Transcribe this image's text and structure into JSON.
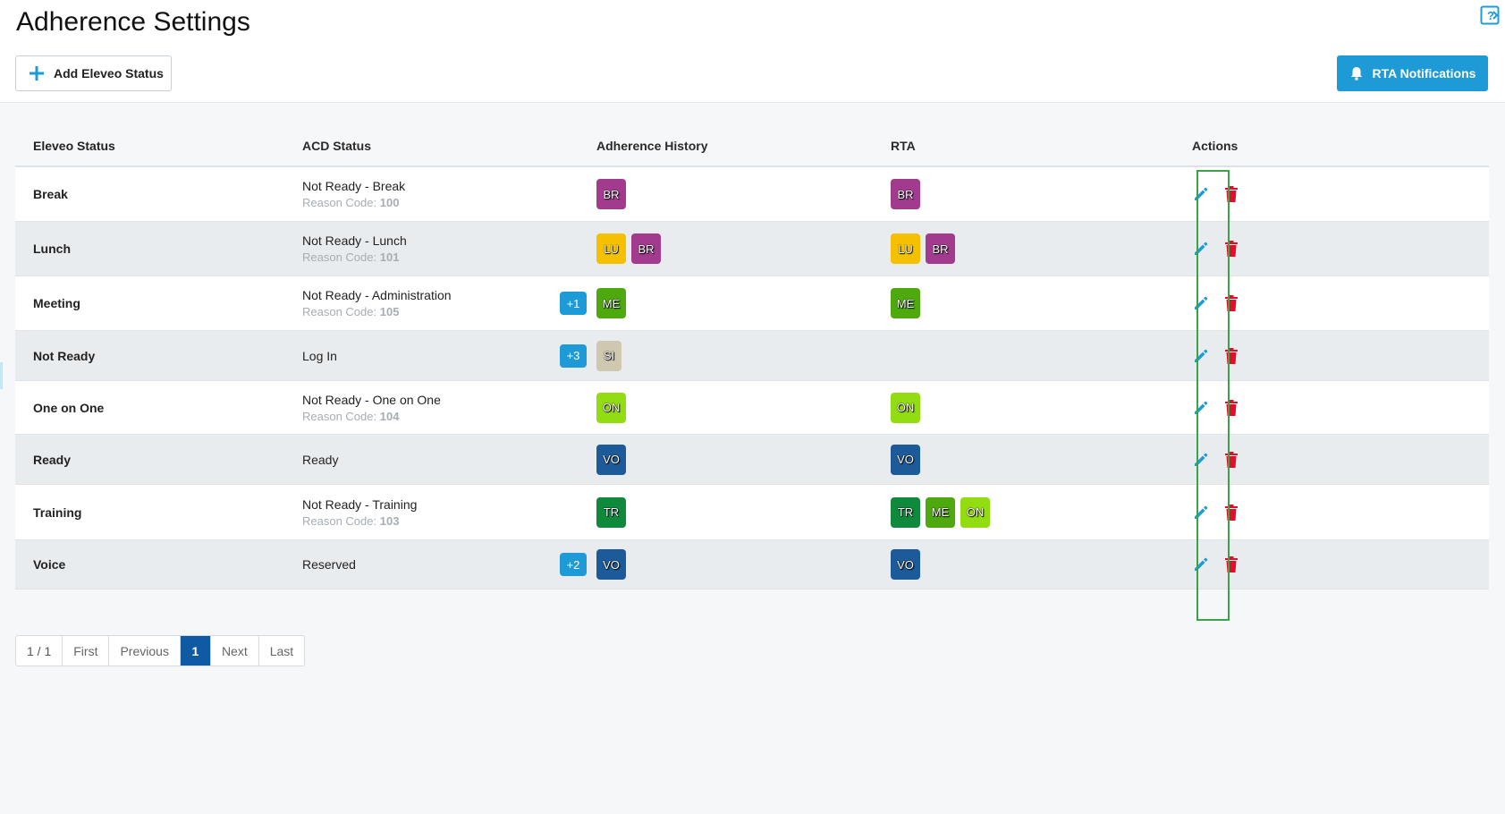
{
  "header": {
    "title": "Adherence Settings",
    "add_button_label": "Add Eleveo Status",
    "rta_button_label": "RTA Notifications"
  },
  "table": {
    "columns": [
      "Eleveo Status",
      "ACD Status",
      "Adherence History",
      "RTA",
      "Actions"
    ],
    "rows": [
      {
        "status": "Break",
        "acd": "Not Ready - Break",
        "reason_label": "Reason Code: ",
        "reason_code": "100",
        "extra": "",
        "history": [
          "BR"
        ],
        "rta": [
          "BR"
        ]
      },
      {
        "status": "Lunch",
        "acd": "Not Ready - Lunch",
        "reason_label": "Reason Code: ",
        "reason_code": "101",
        "extra": "",
        "history": [
          "LU",
          "BR"
        ],
        "rta": [
          "LU",
          "BR"
        ]
      },
      {
        "status": "Meeting",
        "acd": "Not Ready - Administration",
        "reason_label": "Reason Code: ",
        "reason_code": "105",
        "extra": "+1",
        "history": [
          "ME"
        ],
        "rta": [
          "ME"
        ]
      },
      {
        "status": "Not Ready",
        "acd": "Log In",
        "reason_label": "",
        "reason_code": "",
        "extra": "+3",
        "history": [
          "SI"
        ],
        "rta": []
      },
      {
        "status": "One on One",
        "acd": "Not Ready - One on One",
        "reason_label": "Reason Code: ",
        "reason_code": "104",
        "extra": "",
        "history": [
          "ON"
        ],
        "rta": [
          "ON"
        ]
      },
      {
        "status": "Ready",
        "acd": "Ready",
        "reason_label": "",
        "reason_code": "",
        "extra": "",
        "history": [
          "VO"
        ],
        "rta": [
          "VO"
        ]
      },
      {
        "status": "Training",
        "acd": "Not Ready - Training",
        "reason_label": "Reason Code: ",
        "reason_code": "103",
        "extra": "",
        "history": [
          "TR"
        ],
        "rta": [
          "TR",
          "ME",
          "ON"
        ]
      },
      {
        "status": "Voice",
        "acd": "Reserved",
        "reason_label": "",
        "reason_code": "",
        "extra": "+2",
        "history": [
          "VO"
        ],
        "rta": [
          "VO"
        ]
      }
    ]
  },
  "chip_colors": {
    "BR": "#a23b8d",
    "LU": "#f5c000",
    "ME": "#4ea90e",
    "SI": "#d0c7b0",
    "ON": "#92dc12",
    "VO": "#1c5a99",
    "TR": "#0f8a3c"
  },
  "pagination": {
    "info": "1 / 1",
    "first": "First",
    "previous": "Previous",
    "current": "1",
    "next": "Next",
    "last": "Last"
  },
  "colors": {
    "accent": "#1e9bd7",
    "delete": "#e0102a",
    "page_active": "#0f5aa3"
  }
}
